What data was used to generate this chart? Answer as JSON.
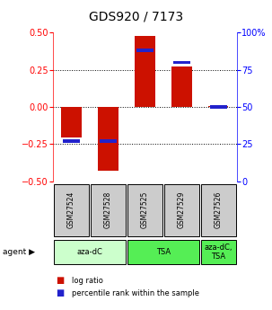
{
  "title": "GDS920 / 7173",
  "samples": [
    "GSM27524",
    "GSM27528",
    "GSM27525",
    "GSM27529",
    "GSM27526"
  ],
  "log_ratios": [
    -0.205,
    -0.43,
    0.48,
    0.27,
    0.005
  ],
  "percentile_ranks": [
    27,
    27,
    88,
    80,
    50
  ],
  "ylim_left": [
    -0.5,
    0.5
  ],
  "ylim_right": [
    0,
    100
  ],
  "bar_color": "#cc1100",
  "blue_color": "#2222cc",
  "agent_groups": [
    {
      "label": "aza-dC",
      "span": [
        0,
        2
      ],
      "color": "#ccffcc"
    },
    {
      "label": "TSA",
      "span": [
        2,
        4
      ],
      "color": "#55ee55"
    },
    {
      "label": "aza-dC,\nTSA",
      "span": [
        4,
        5
      ],
      "color": "#55ee55"
    }
  ],
  "yticks_left": [
    -0.5,
    -0.25,
    0,
    0.25,
    0.5
  ],
  "yticks_right": [
    0,
    25,
    50,
    75,
    100
  ],
  "dotted_lines": [
    -0.25,
    0,
    0.25
  ],
  "bar_width": 0.55,
  "legend_red": "log ratio",
  "legend_blue": "percentile rank within the sample",
  "sample_box_color": "#cccccc",
  "fig_width": 3.03,
  "fig_height": 3.45
}
